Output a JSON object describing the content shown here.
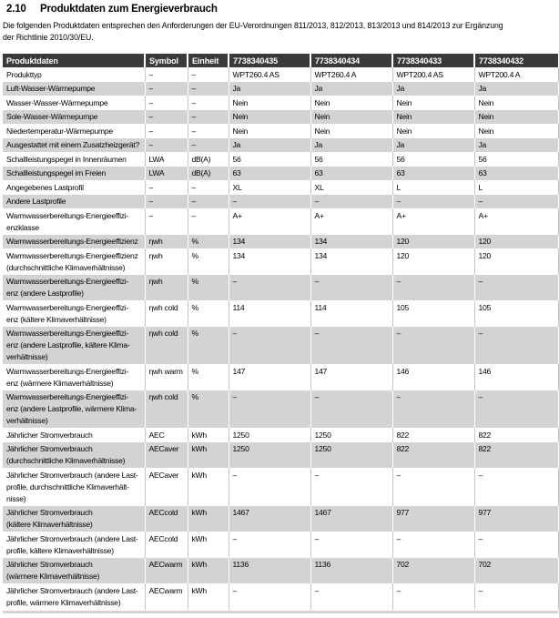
{
  "colors": {
    "header_bg": "#3a3a39",
    "header_text": "#ffffff",
    "row_shade": "#d3d3d2",
    "body_text": "#000000",
    "separator_light": "#c6c6c6"
  },
  "section": {
    "number": "2.10",
    "title": "Produktdaten zum Energieverbrauch"
  },
  "intro": "Die folgenden Produktdaten entsprechen den Anforderungen der EU-Verordnungen 811/2013, 812/2013, 813/2013 und 814/2013 zur Ergänzung\nder Richtlinie 2010/30/EU.",
  "table": {
    "headers": [
      "Produktdaten",
      "Symbol",
      "Einheit",
      "7738340435",
      "7738340434",
      "7738340433",
      "7738340432"
    ],
    "rows": [
      {
        "label": "Produkttyp",
        "symbol": "–",
        "unit": "–",
        "values": [
          "WPT260.4 AS",
          "WPT260.4 A",
          "WPT200.4 AS",
          "WPT200.4 A"
        ]
      },
      {
        "label": "Luft-Wasser-Wärmepumpe",
        "symbol": "–",
        "unit": "–",
        "values": [
          "Ja",
          "Ja",
          "Ja",
          "Ja"
        ]
      },
      {
        "label": "Wasser-Wasser-Wärmepumpe",
        "symbol": "–",
        "unit": "–",
        "values": [
          "Nein",
          "Nein",
          "Nein",
          "Nein"
        ]
      },
      {
        "label": "Sole-Wasser-Wärmepumpe",
        "symbol": "–",
        "unit": "–",
        "values": [
          "Nein",
          "Nein",
          "Nein",
          "Nein"
        ]
      },
      {
        "label": "Niedertemperatur-Wärmepumpe",
        "symbol": "–",
        "unit": "–",
        "values": [
          "Nein",
          "Nein",
          "Nein",
          "Nein"
        ]
      },
      {
        "label": "Ausgestattet mit einem Zusatzheizgerät?",
        "symbol": "–",
        "unit": "–",
        "values": [
          "Ja",
          "Ja",
          "Ja",
          "Ja"
        ]
      },
      {
        "label": "Schallleistungspegel in Innenräumen",
        "symbol": "LWA",
        "unit": "dB(A)",
        "values": [
          "56",
          "56",
          "56",
          "56"
        ]
      },
      {
        "label": "Schallleistungspegel im Freien",
        "symbol": "LWA",
        "unit": "dB(A)",
        "values": [
          "63",
          "63",
          "63",
          "63"
        ]
      },
      {
        "label": "Angegebenes Lastprofil",
        "symbol": "–",
        "unit": "–",
        "values": [
          "XL",
          "XL",
          "L",
          "L"
        ]
      },
      {
        "label": "Andere Lastprofile",
        "symbol": "–",
        "unit": "–",
        "values": [
          "–",
          "–",
          "–",
          "–"
        ]
      },
      {
        "label": "Warmwasserbereitungs-Energieeffizi-\nenzklasse",
        "symbol": "–",
        "unit": "–",
        "values": [
          "A+",
          "A+",
          "A+",
          "A+"
        ]
      },
      {
        "label": "Warmwasserbereitungs-Energieeffizienz",
        "symbol": "ηwh",
        "unit": "%",
        "values": [
          "134",
          "134",
          "120",
          "120"
        ]
      },
      {
        "label": "Warmwasserbereitungs-Energieeffizienz\n(durchschnittliche Klimaverhältnisse)",
        "symbol": "ηwh",
        "unit": "%",
        "values": [
          "134",
          "134",
          "120",
          "120"
        ]
      },
      {
        "label": "Warmwasserbereitungs-Energieeffizi-\nenz (andere Lastprofile)",
        "symbol": "ηwh",
        "unit": "%",
        "values": [
          "–",
          "–",
          "–",
          "–"
        ]
      },
      {
        "label": "Warmwasserbereitungs-Energieeffizi-\nenz (kältere Klimaverhältnisse)",
        "symbol": "ηwh cold",
        "unit": "%",
        "values": [
          "114",
          "114",
          "105",
          "105"
        ]
      },
      {
        "label": "Warmwasserbereitungs-Energieeffizi-\nenz (andere Lastprofile, kältere Klima-\nverhältnisse)",
        "symbol": "ηwh cold",
        "unit": "%",
        "values": [
          "–",
          "–",
          "–",
          "–"
        ]
      },
      {
        "label": "Warmwasserbereitungs-Energieeffizi-\nenz (wärmere Klimaverhältnisse)",
        "symbol": "ηwh warm",
        "unit": "%",
        "values": [
          "147",
          "147",
          "146",
          "146"
        ]
      },
      {
        "label": "Warmwasserbereitungs-Energieeffizi-\nenz (andere Lastprofile, wärmere Klima-\nverhältnisse)",
        "symbol": "ηwh cold",
        "unit": "%",
        "values": [
          "–",
          "–",
          "–",
          "–"
        ]
      },
      {
        "label": "Jährlicher Stromverbrauch",
        "symbol": "AEC",
        "unit": "kWh",
        "values": [
          "1250",
          "1250",
          "822",
          "822"
        ]
      },
      {
        "label": "Jährlicher Stromverbrauch\n(durchschnittliche Klimaverhältnisse)",
        "symbol": "AECaver",
        "unit": "kWh",
        "values": [
          "1250",
          "1250",
          "822",
          "822"
        ]
      },
      {
        "label": "Jährlicher Stromverbrauch (andere Last-\nprofile, durchschnittliche Klimaverhält-\nnisse)",
        "symbol": "AECaver",
        "unit": "kWh",
        "values": [
          "–",
          "–",
          "–",
          "–"
        ]
      },
      {
        "label": "Jährlicher Stromverbrauch\n(kältere Klimaverhältnisse)",
        "symbol": "AECcold",
        "unit": "kWh",
        "values": [
          "1467",
          "1467",
          "977",
          "977"
        ]
      },
      {
        "label": "Jährlicher Stromverbrauch (andere Last-\nprofile, kältere Klimaverhältnisse)",
        "symbol": "AECcold",
        "unit": "kWh",
        "values": [
          "–",
          "–",
          "–",
          "–"
        ]
      },
      {
        "label": "Jährlicher Stromverbrauch\n(wärmere Klimaverhältnisse)",
        "symbol": "AECwarm",
        "unit": "kWh",
        "values": [
          "1136",
          "1136",
          "702",
          "702"
        ]
      },
      {
        "label": "Jährlicher Stromverbrauch (andere Last-\nprofile, wärmere Klimaverhältnisse)",
        "symbol": "AECwarm",
        "unit": "kWh",
        "values": [
          "–",
          "–",
          "–",
          "–"
        ]
      }
    ]
  }
}
